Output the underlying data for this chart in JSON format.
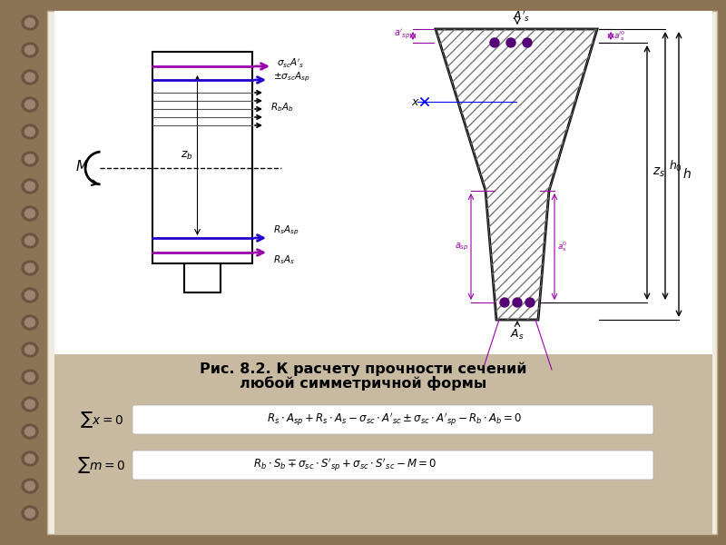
{
  "background_outer": "#8B7355",
  "background_inner": "#F0EBE0",
  "background_bottom": "#C8BAA0",
  "title_line1": "Рис. 8.2. К расчету прочности сечений",
  "title_line2": "любой симметричной формы",
  "eq1_left": "$\\sum x = 0$",
  "eq1_right": "$R_s \\cdot A_{sp} + R_s \\cdot A_s - \\sigma_{sc} \\cdot A'_{sc} \\pm \\sigma_{sc} \\cdot A'_{sp} - R_b \\cdot A_b = 0$",
  "eq2_left": "$\\sum m = 0$",
  "eq2_right": "$R_b \\cdot S_b \\mp \\sigma_{sc} \\cdot S'_{sp} + \\sigma_{sc} \\cdot S'_{sc} - M = 0$",
  "purple": "#9900AA",
  "blue": "#2200CC",
  "dark_purple": "#550077"
}
